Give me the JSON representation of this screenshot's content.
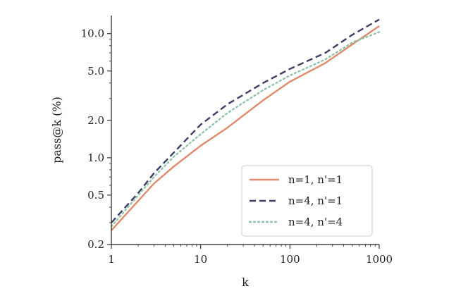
{
  "chart_data": {
    "type": "line",
    "title": "",
    "xlabel": "k",
    "ylabel": "pass@k (%)",
    "x_scale": "log",
    "y_scale": "log",
    "xlim": [
      1,
      1000
    ],
    "ylim": [
      0.2,
      14
    ],
    "x_ticks": [
      1,
      10,
      100,
      1000
    ],
    "x_tick_labels": [
      "1",
      "10",
      "100",
      "1000"
    ],
    "y_ticks": [
      0.2,
      0.5,
      1.0,
      2.0,
      5.0,
      10.0
    ],
    "y_tick_labels": [
      "0.2",
      "0.5",
      "1.0",
      "2.0",
      "5.0",
      "10.0"
    ],
    "grid": false,
    "legend_position": "lower-right",
    "series": [
      {
        "name": "n=1, n'=1",
        "color": "#e08a6a",
        "style": "solid",
        "x": [
          1,
          2,
          3,
          5,
          10,
          20,
          50,
          100,
          250,
          500,
          1000
        ],
        "y": [
          0.26,
          0.45,
          0.62,
          0.85,
          1.25,
          1.75,
          2.9,
          4.1,
          5.8,
          8.2,
          11.5
        ]
      },
      {
        "name": "n=4, n'=1",
        "color": "#3f3d66",
        "style": "dashed",
        "x": [
          1,
          2,
          3,
          5,
          10,
          20,
          50,
          100,
          250,
          500,
          1000
        ],
        "y": [
          0.3,
          0.52,
          0.75,
          1.1,
          1.85,
          2.7,
          4.0,
          5.2,
          7.0,
          9.8,
          13.0
        ]
      },
      {
        "name": "n=4, n'=4",
        "color": "#8fc4a8",
        "style": "dotted",
        "x": [
          1,
          2,
          3,
          5,
          10,
          20,
          50,
          100,
          250,
          500,
          1000
        ],
        "y": [
          0.28,
          0.5,
          0.7,
          1.02,
          1.55,
          2.3,
          3.5,
          4.6,
          6.2,
          8.5,
          10.3
        ]
      }
    ]
  }
}
